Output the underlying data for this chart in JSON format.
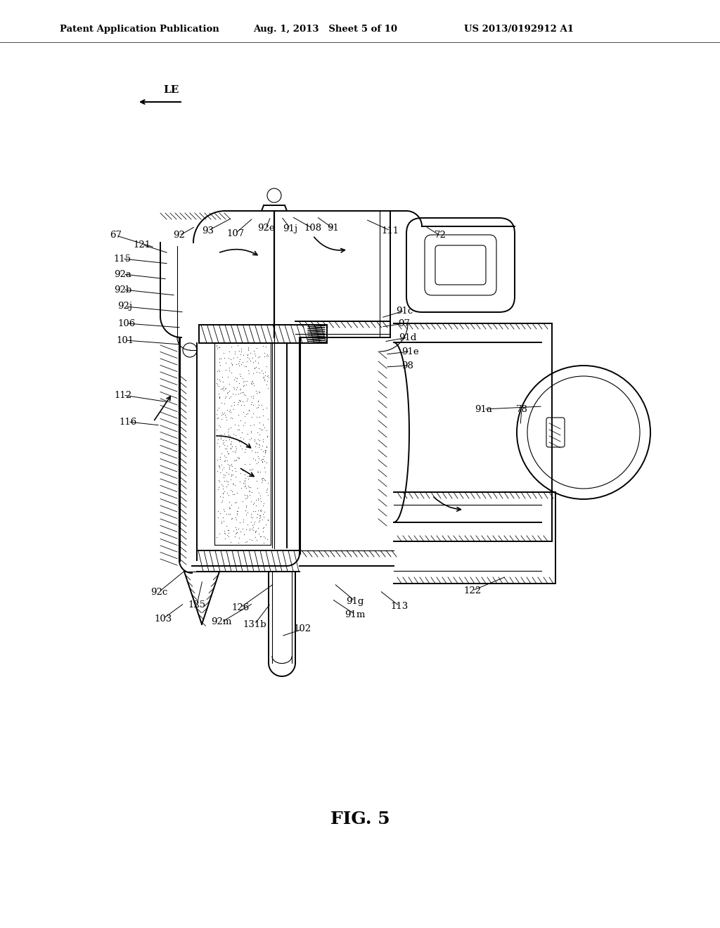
{
  "background_color": "#ffffff",
  "header_left": "Patent Application Publication",
  "header_mid": "Aug. 1, 2013   Sheet 5 of 10",
  "header_right": "US 2013/0192912 A1",
  "figure_label": "FIG. 5",
  "black": "#000000",
  "gray_hatch": "#000000",
  "lw_main": 1.4,
  "lw_thick": 2.2,
  "lw_thin": 0.8,
  "lw_hair": 0.5
}
